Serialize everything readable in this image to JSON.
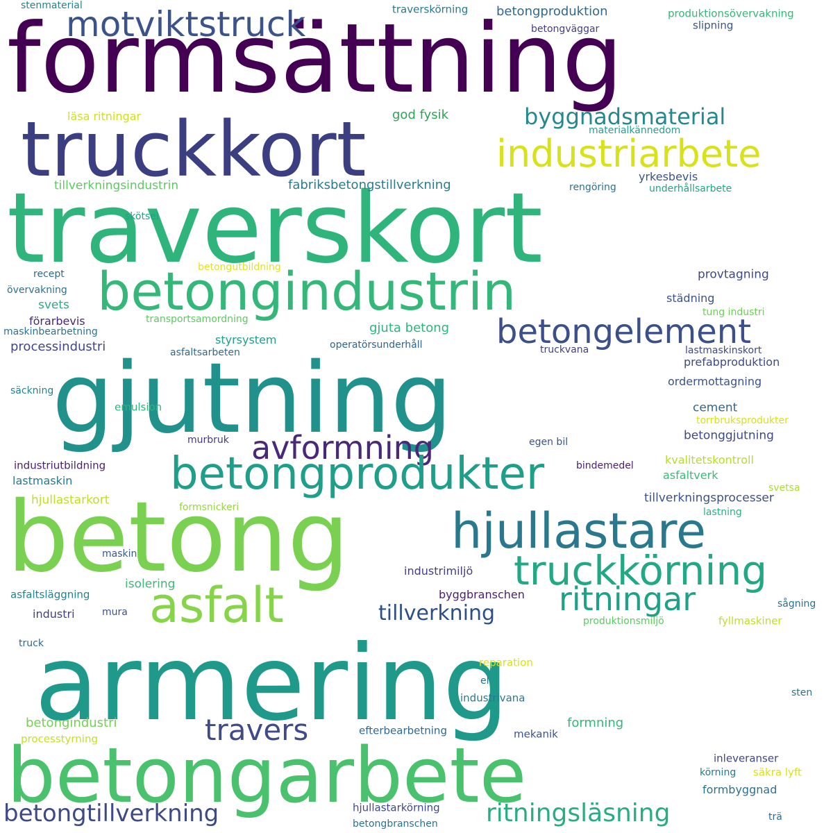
{
  "words": [
    {
      "text": "formsättning",
      "color": "#440154"
    },
    {
      "text": "truckkort",
      "color": "#3b3f82"
    },
    {
      "text": "motviktstruck",
      "color": "#3b528b"
    },
    {
      "text": "industriarbete",
      "color": "#d8e219"
    },
    {
      "text": "traverskort",
      "color": "#2fb47c"
    },
    {
      "text": "betongindustrin",
      "color": "#35b779"
    },
    {
      "text": "betongelement",
      "color": "#3b4f8a"
    },
    {
      "text": "gjutning",
      "color": "#21918c"
    },
    {
      "text": "avformning",
      "color": "#482878"
    },
    {
      "text": "betongprodukter",
      "color": "#1f9e89"
    },
    {
      "text": "betong",
      "color": "#7ad151"
    },
    {
      "text": "hjullastare",
      "color": "#2a788e"
    },
    {
      "text": "truckkörning",
      "color": "#22a884"
    },
    {
      "text": "ritningar",
      "color": "#1fa187"
    },
    {
      "text": "asfalt",
      "color": "#86d549"
    },
    {
      "text": "tillverkning",
      "color": "#2c4e8a"
    },
    {
      "text": "armering",
      "color": "#1f9a8a"
    },
    {
      "text": "travers",
      "color": "#3e4a89"
    },
    {
      "text": "betongarbete",
      "color": "#4ac16d"
    },
    {
      "text": "betongtillverkning",
      "color": "#3e4989"
    },
    {
      "text": "ritningsläsning",
      "color": "#27ad81"
    },
    {
      "text": "byggnadsmaterial",
      "color": "#23898e"
    },
    {
      "text": "betongproduktion",
      "color": "#31688e"
    },
    {
      "text": "god fysik",
      "color": "#31a354"
    },
    {
      "text": "fabriksbetongstillverkning",
      "color": "#2a7b8e"
    },
    {
      "text": "yrkesbevis",
      "color": "#3b528b"
    },
    {
      "text": "stenmaterial",
      "color": "#26828e"
    },
    {
      "text": "traverskörning",
      "color": "#2a788e"
    },
    {
      "text": "produktionsövervakning",
      "color": "#35b779"
    },
    {
      "text": "betongväggar",
      "color": "#433e85"
    },
    {
      "text": "slipning",
      "color": "#3b528b"
    },
    {
      "text": "läsa ritningar",
      "color": "#d0e11c"
    },
    {
      "text": "materialkännedom",
      "color": "#2a9d8f"
    },
    {
      "text": "tillverkningsindustrin",
      "color": "#5ec962"
    },
    {
      "text": "rengöring",
      "color": "#2c728e"
    },
    {
      "text": "underhållsarbete",
      "color": "#21a685"
    },
    {
      "text": "skötsel",
      "color": "#1fa088"
    },
    {
      "text": "betongutbildning",
      "color": "#e0e324"
    },
    {
      "text": "recept",
      "color": "#31688e"
    },
    {
      "text": "provtagning",
      "color": "#3e4989"
    },
    {
      "text": "övervakning",
      "color": "#2d708e"
    },
    {
      "text": "svets",
      "color": "#29af7f"
    },
    {
      "text": "städning",
      "color": "#3b528b"
    },
    {
      "text": "tung industri",
      "color": "#6ece58"
    },
    {
      "text": "förarbevis",
      "color": "#482878"
    },
    {
      "text": "transportsamordning",
      "color": "#5ec962"
    },
    {
      "text": "maskinbearbetning",
      "color": "#2c728e"
    },
    {
      "text": "gjuta betong",
      "color": "#2fb47c"
    },
    {
      "text": "processindustri",
      "color": "#404688"
    },
    {
      "text": "styrsystem",
      "color": "#1f9e89"
    },
    {
      "text": "operatörsunderhåll",
      "color": "#33638d"
    },
    {
      "text": "truckvana",
      "color": "#433e85"
    },
    {
      "text": "lastmaskinskort",
      "color": "#3e4989"
    },
    {
      "text": "asfaltsarbeten",
      "color": "#31688e"
    },
    {
      "text": "prefabproduktion",
      "color": "#3e4989"
    },
    {
      "text": "ordermottagning",
      "color": "#3b528b"
    },
    {
      "text": "säckning",
      "color": "#26828e"
    },
    {
      "text": "emulsion",
      "color": "#2fb47c"
    },
    {
      "text": "cement",
      "color": "#31688e"
    },
    {
      "text": "torrbruksprodukter",
      "color": "#d8e219"
    },
    {
      "text": "murbruk",
      "color": "#443983"
    },
    {
      "text": "egen bil",
      "color": "#3b528b"
    },
    {
      "text": "betonggjutning",
      "color": "#3e4989"
    },
    {
      "text": "industriutbildning",
      "color": "#481f70"
    },
    {
      "text": "bindemedel",
      "color": "#481f70"
    },
    {
      "text": "kvalitetskontroll",
      "color": "#b5de2b"
    },
    {
      "text": "lastmaskin",
      "color": "#2a788e"
    },
    {
      "text": "asfaltverk",
      "color": "#3aba76"
    },
    {
      "text": "svetsa",
      "color": "#addc30"
    },
    {
      "text": "hjullastarkort",
      "color": "#bddf26"
    },
    {
      "text": "formsnickeri",
      "color": "#95d840"
    },
    {
      "text": "tillverkningsprocesser",
      "color": "#3b528b"
    },
    {
      "text": "lastning",
      "color": "#2ab07f"
    },
    {
      "text": "maskin",
      "color": "#38598c"
    },
    {
      "text": "industrimiljö",
      "color": "#433e85"
    },
    {
      "text": "isolering",
      "color": "#3aba76"
    },
    {
      "text": "asfaltsläggning",
      "color": "#26828e"
    },
    {
      "text": "byggbranschen",
      "color": "#481f70"
    },
    {
      "text": "sågning",
      "color": "#2d708e"
    },
    {
      "text": "industri",
      "color": "#433e85"
    },
    {
      "text": "mura",
      "color": "#3b528b"
    },
    {
      "text": "produktionsmiljö",
      "color": "#5ec962"
    },
    {
      "text": "fyllmaskiner",
      "color": "#c2df23"
    },
    {
      "text": "truck",
      "color": "#31688e"
    },
    {
      "text": "reparation",
      "color": "#d8e219"
    },
    {
      "text": "el",
      "color": "#2d708e"
    },
    {
      "text": "industrivana",
      "color": "#2a788e"
    },
    {
      "text": "sten",
      "color": "#2d708e"
    },
    {
      "text": "betongindustri",
      "color": "#75d054"
    },
    {
      "text": "formning",
      "color": "#35b779"
    },
    {
      "text": "efterbearbetning",
      "color": "#31688e"
    },
    {
      "text": "processtyrning",
      "color": "#c8e020"
    },
    {
      "text": "mekanik",
      "color": "#3b528b"
    },
    {
      "text": "inleveranser",
      "color": "#414487"
    },
    {
      "text": "körning",
      "color": "#2a788e"
    },
    {
      "text": "säkra lyft",
      "color": "#d8e219"
    },
    {
      "text": "formbyggnad",
      "color": "#2c728e"
    },
    {
      "text": "hjullastarkörning",
      "color": "#3e4989"
    },
    {
      "text": "trä",
      "color": "#31688e"
    },
    {
      "text": "betongbranschen",
      "color": "#2c728e"
    }
  ]
}
